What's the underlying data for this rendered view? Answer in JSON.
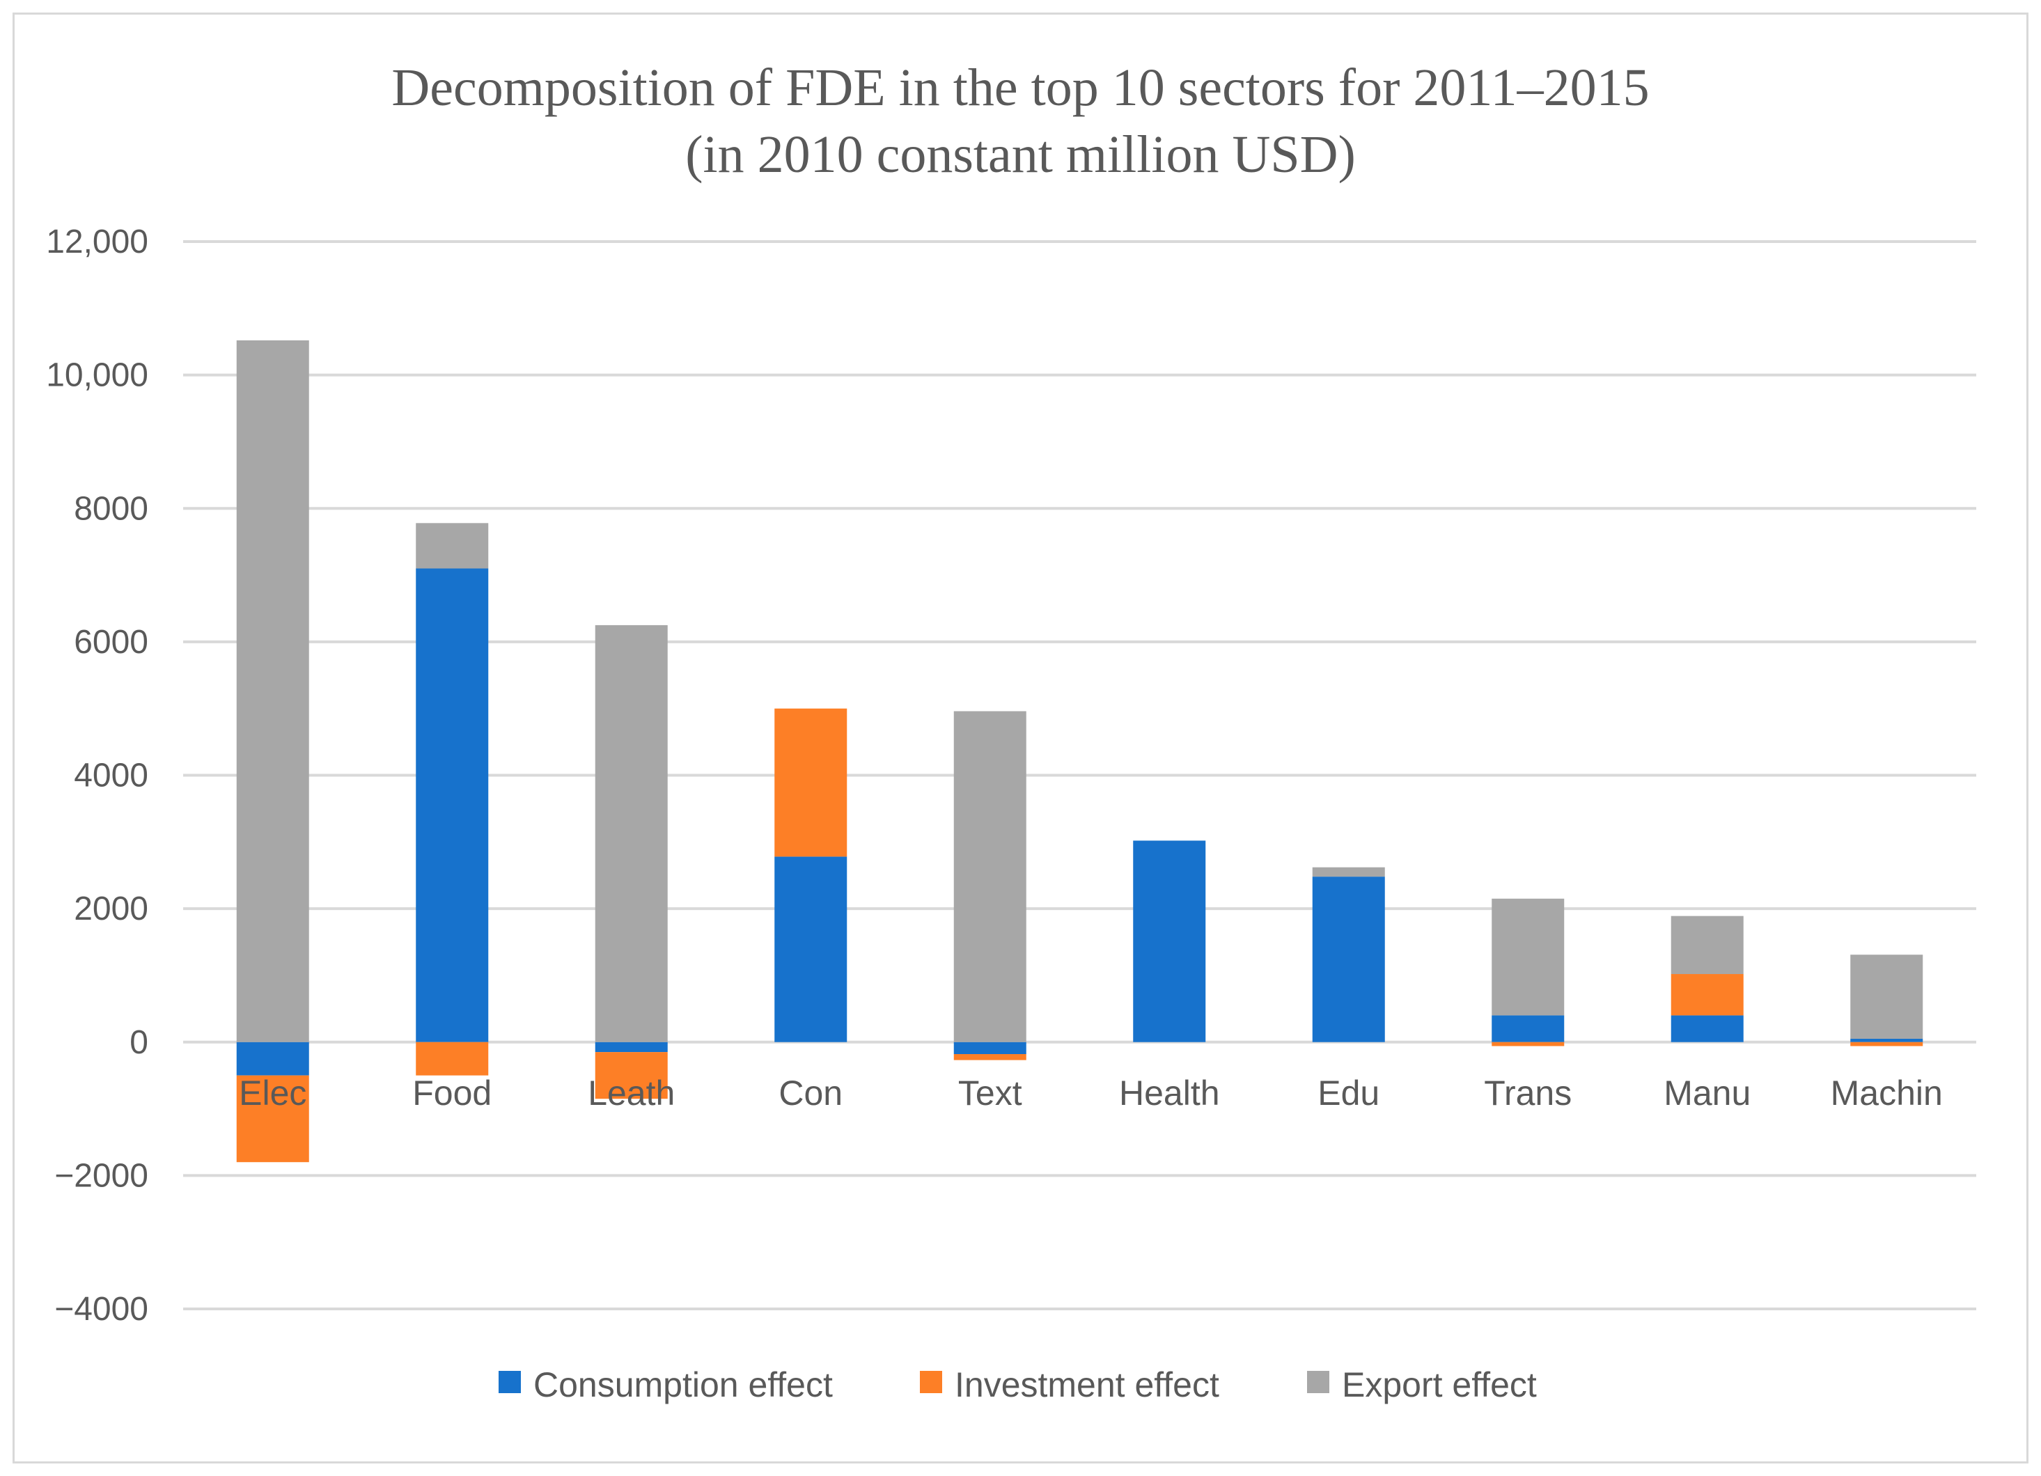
{
  "chart_data": {
    "type": "bar",
    "stacked": true,
    "title_line1": "Decomposition of FDE in the top 10 sectors for 2011–2015",
    "title_line2": "(in 2010 constant million USD)",
    "xlabel": "",
    "ylabel": "",
    "ylim": [
      -4000,
      12000
    ],
    "yticks": [
      12000,
      10000,
      8000,
      6000,
      4000,
      2000,
      0,
      -2000,
      -4000
    ],
    "ytick_labels": [
      "12,000",
      "10,000",
      "8000",
      "6000",
      "4000",
      "2000",
      "0",
      "−2000",
      "−4000"
    ],
    "grid": true,
    "legend_position": "bottom",
    "categories": [
      "Elec",
      "Food",
      "Leath",
      "Con",
      "Text",
      "Health",
      "Edu",
      "Trans",
      "Manu",
      "Machin"
    ],
    "series": [
      {
        "name": "Consumption effect",
        "color": "#1772cc",
        "values": [
          -500,
          7100,
          -150,
          2780,
          -180,
          3020,
          2480,
          400,
          400,
          50
        ]
      },
      {
        "name": "Investment effect",
        "color": "#fd7f26",
        "values": [
          -1300,
          -500,
          -700,
          2220,
          -90,
          0,
          0,
          -60,
          620,
          -60
        ]
      },
      {
        "name": "Export effect",
        "color": "#a7a7a7",
        "values": [
          10520,
          680,
          6250,
          0,
          4960,
          0,
          140,
          1750,
          870,
          1260
        ]
      }
    ]
  }
}
